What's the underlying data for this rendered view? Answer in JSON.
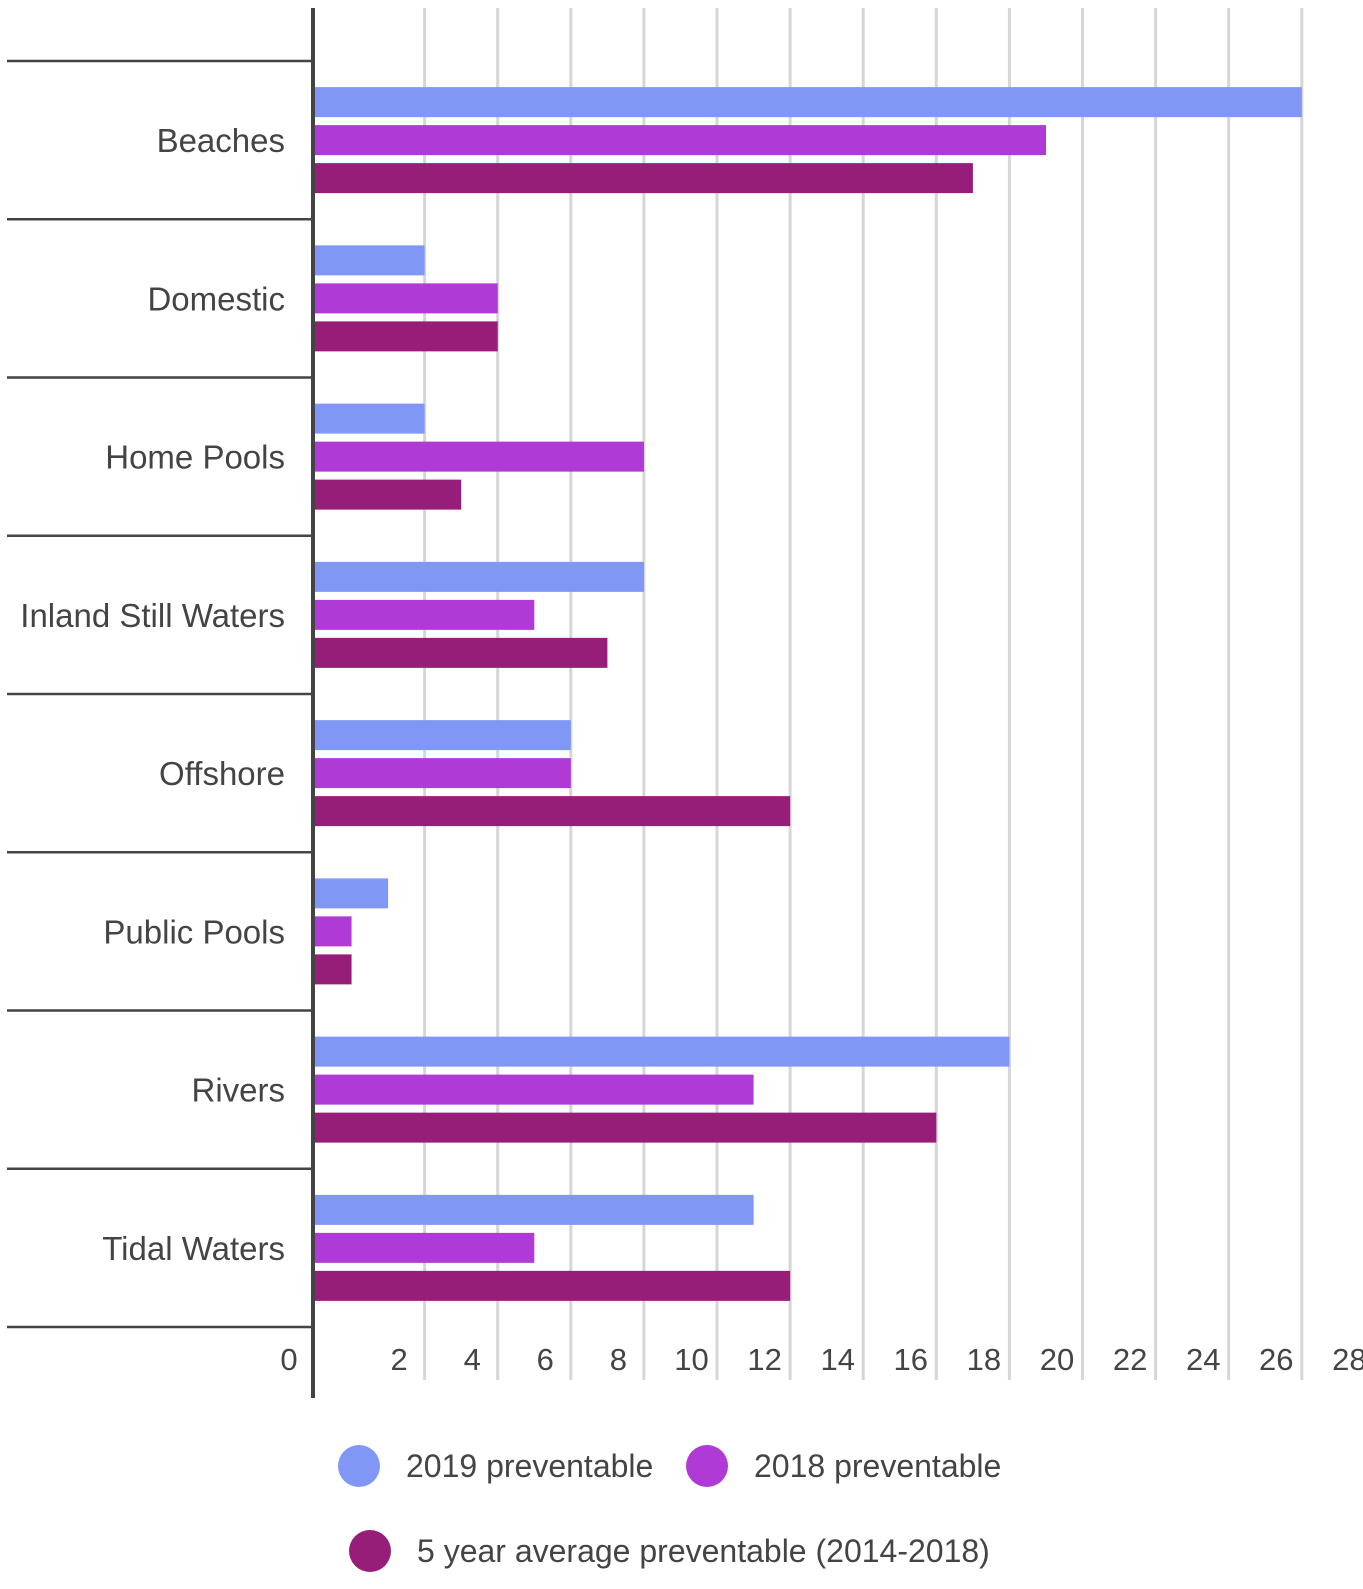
{
  "chart_data": {
    "type": "bar",
    "orientation": "horizontal",
    "title": "",
    "xlabel": "",
    "ylabel": "",
    "xlim": [
      0,
      28
    ],
    "x_ticks": [
      0,
      2,
      4,
      6,
      8,
      10,
      12,
      14,
      16,
      18,
      20,
      22,
      24,
      26,
      28
    ],
    "grid": true,
    "legend_position": "bottom",
    "categories": [
      "Beaches",
      "Domestic",
      "Home Pools",
      "Inland Still Waters",
      "Offshore",
      "Public Pools",
      "Rivers",
      "Tidal Waters"
    ],
    "series": [
      {
        "name": "2019 preventable",
        "color": "#8097F5",
        "values": [
          27,
          3,
          3,
          9,
          7,
          2,
          19,
          12
        ]
      },
      {
        "name": "2018 preventable",
        "color": "#B03AD6",
        "values": [
          20,
          5,
          9,
          6,
          7,
          1,
          12,
          6
        ]
      },
      {
        "name": "5 year average preventable (2014-2018)",
        "color": "#961E78",
        "values": [
          18,
          5,
          4,
          8,
          13,
          1,
          17,
          13
        ]
      }
    ]
  }
}
